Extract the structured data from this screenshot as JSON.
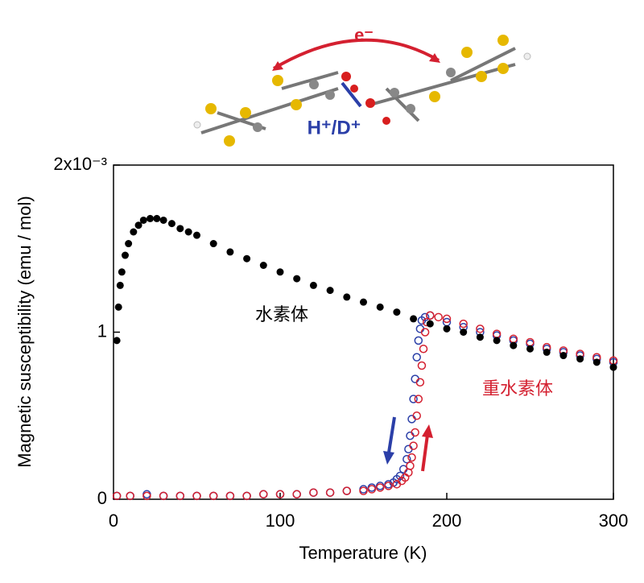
{
  "chart_data": {
    "type": "scatter",
    "xlabel": "Temperature (K)",
    "ylabel": "Magnetic susceptibility (emu / mol)",
    "xlim": [
      0,
      300
    ],
    "xticks": [
      0,
      100,
      200,
      300
    ],
    "ylim": [
      0,
      2
    ],
    "yticks": [
      0,
      1,
      {
        "value": 2,
        "label": "2x10⁻³"
      }
    ],
    "annotations": [
      "水素体",
      "重水素体",
      "e⁻",
      "H⁺/D⁺"
    ],
    "series": [
      {
        "color": "#2b3fa8",
        "marker": "open",
        "x": [
          2,
          10,
          20,
          30,
          40,
          50,
          60,
          70,
          80,
          90,
          100,
          110,
          120,
          130,
          140,
          150,
          155,
          160,
          165,
          168,
          170,
          172,
          174,
          176,
          177,
          178,
          179,
          180,
          181,
          182,
          183,
          184,
          185,
          187,
          190,
          200,
          210,
          220,
          230,
          240,
          250,
          260,
          270,
          280,
          290,
          300
        ],
        "values": [
          0.02,
          0.02,
          0.03,
          0.02,
          0.02,
          0.02,
          0.02,
          0.02,
          0.02,
          0.03,
          0.03,
          0.03,
          0.04,
          0.04,
          0.05,
          0.06,
          0.07,
          0.08,
          0.09,
          0.1,
          0.12,
          0.14,
          0.18,
          0.24,
          0.3,
          0.38,
          0.48,
          0.6,
          0.72,
          0.85,
          0.95,
          1.02,
          1.07,
          1.09,
          1.1,
          1.06,
          1.03,
          1.0,
          0.98,
          0.95,
          0.93,
          0.9,
          0.88,
          0.86,
          0.84,
          0.82
        ]
      },
      {
        "color": "#d42030",
        "marker": "open",
        "x": [
          2,
          10,
          20,
          30,
          40,
          50,
          60,
          70,
          80,
          90,
          100,
          110,
          120,
          130,
          140,
          150,
          155,
          160,
          165,
          170,
          173,
          175,
          177,
          178,
          179,
          180,
          181,
          182,
          183,
          184,
          185,
          186,
          187,
          188,
          190,
          195,
          200,
          210,
          220,
          230,
          240,
          250,
          260,
          270,
          280,
          290,
          300
        ],
        "values": [
          0.02,
          0.02,
          0.02,
          0.02,
          0.02,
          0.02,
          0.02,
          0.02,
          0.02,
          0.03,
          0.03,
          0.03,
          0.04,
          0.04,
          0.05,
          0.05,
          0.06,
          0.07,
          0.08,
          0.09,
          0.11,
          0.13,
          0.16,
          0.2,
          0.25,
          0.32,
          0.4,
          0.5,
          0.6,
          0.7,
          0.8,
          0.9,
          1.0,
          1.06,
          1.1,
          1.09,
          1.08,
          1.05,
          1.02,
          0.99,
          0.96,
          0.94,
          0.91,
          0.89,
          0.87,
          0.85,
          0.83
        ]
      },
      {
        "color": "#000000",
        "marker": "filled",
        "x": [
          2,
          3,
          4,
          5,
          7,
          9,
          12,
          15,
          18,
          22,
          26,
          30,
          35,
          40,
          45,
          50,
          60,
          70,
          80,
          90,
          100,
          110,
          120,
          130,
          140,
          150,
          160,
          170,
          180,
          190,
          200,
          210,
          220,
          230,
          240,
          250,
          260,
          270,
          280,
          290,
          300
        ],
        "values": [
          0.95,
          1.15,
          1.28,
          1.36,
          1.46,
          1.53,
          1.6,
          1.64,
          1.67,
          1.68,
          1.68,
          1.67,
          1.65,
          1.62,
          1.6,
          1.58,
          1.53,
          1.48,
          1.44,
          1.4,
          1.36,
          1.32,
          1.28,
          1.25,
          1.21,
          1.18,
          1.15,
          1.12,
          1.08,
          1.05,
          1.02,
          1.0,
          0.97,
          0.95,
          0.92,
          0.9,
          0.88,
          0.86,
          0.84,
          0.82,
          0.79
        ]
      }
    ]
  }
}
